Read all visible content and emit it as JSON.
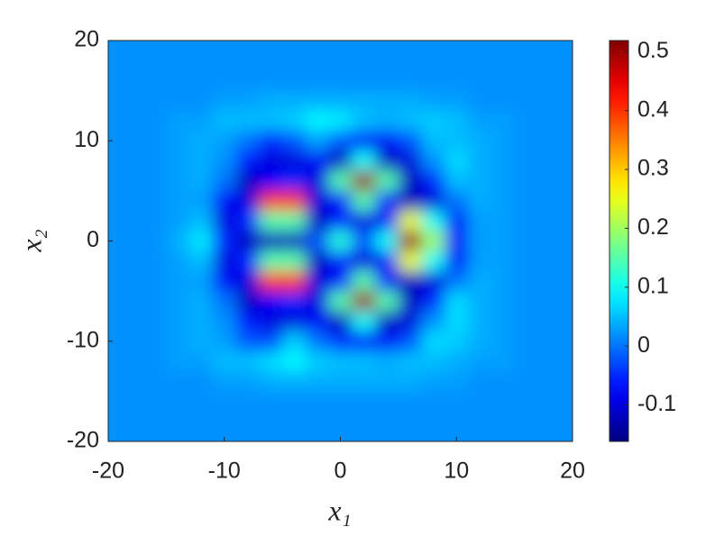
{
  "chart_data": {
    "type": "heatmap",
    "xlabel": "x₁",
    "ylabel": "x₂",
    "x": [
      -20,
      -18,
      -16,
      -14,
      -12,
      -10,
      -8,
      -6,
      -4,
      -2,
      0,
      2,
      4,
      6,
      8,
      10,
      12,
      14,
      16,
      18,
      20
    ],
    "y": [
      20,
      18,
      16,
      14,
      12,
      10,
      8,
      6,
      4,
      2,
      0,
      -2,
      -4,
      -6,
      -8,
      -10,
      -12,
      -14,
      -16,
      -18,
      -20
    ],
    "z": [
      [
        0.02,
        0.02,
        0.02,
        0.02,
        0.02,
        0.02,
        0.02,
        0.02,
        0.02,
        0.02,
        0.02,
        0.02,
        0.02,
        0.02,
        0.02,
        0.02,
        0.02,
        0.02,
        0.02,
        0.02,
        0.02
      ],
      [
        0.02,
        0.02,
        0.02,
        0.02,
        0.02,
        0.02,
        0.02,
        0.02,
        0.02,
        0.02,
        0.02,
        0.02,
        0.02,
        0.02,
        0.02,
        0.02,
        0.02,
        0.02,
        0.02,
        0.02,
        0.02
      ],
      [
        0.02,
        0.02,
        0.02,
        0.02,
        0.02,
        0.02,
        0.02,
        0.02,
        0.02,
        0.02,
        0.02,
        0.02,
        0.02,
        0.02,
        0.02,
        0.02,
        0.02,
        0.02,
        0.02,
        0.02,
        0.02
      ],
      [
        0.02,
        0.02,
        0.02,
        0.02,
        0.02,
        0.03,
        0.03,
        0.04,
        0.04,
        0.04,
        0.04,
        0.04,
        0.04,
        0.04,
        0.03,
        0.03,
        0.02,
        0.02,
        0.02,
        0.02,
        0.02
      ],
      [
        0.02,
        0.02,
        0.02,
        0.03,
        0.03,
        0.05,
        0.05,
        0.05,
        0.06,
        0.09,
        0.08,
        0.05,
        0.04,
        0.05,
        0.06,
        0.05,
        0.03,
        0.03,
        0.02,
        0.02,
        0.02
      ],
      [
        0.02,
        0.02,
        0.02,
        0.03,
        0.04,
        0.03,
        0,
        -0.05,
        -0.02,
        0.03,
        -0.02,
        -0.08,
        -0.08,
        -0.02,
        0.05,
        0.05,
        0.04,
        0.03,
        0.02,
        0.02,
        0.02
      ],
      [
        0.02,
        0.02,
        0.02,
        0.03,
        0.04,
        0.02,
        -0.06,
        -0.1,
        -0.1,
        -0.08,
        -0.12,
        0.1,
        -0.12,
        -0.1,
        0.02,
        0.07,
        0.04,
        0.03,
        0.02,
        0.02,
        0.02
      ],
      [
        0.02,
        0.02,
        0.02,
        0.03,
        0.04,
        0,
        -0.12,
        -0.08,
        -0.05,
        -0.1,
        0.15,
        0.5,
        0.15,
        -0.12,
        -0.05,
        0.05,
        0.04,
        0.03,
        0.02,
        0.02,
        0.02
      ],
      [
        0.02,
        0.02,
        0.02,
        0.03,
        0.03,
        -0.08,
        -0.1,
        0.4,
        0.4,
        -0.1,
        -0.08,
        0.15,
        -0.08,
        -0.12,
        -0.1,
        0,
        0.04,
        0.03,
        0.02,
        0.02,
        0.02
      ],
      [
        0.02,
        0.02,
        0.02,
        0.03,
        0.05,
        -0.1,
        -0.05,
        0.15,
        0.15,
        -0.12,
        -0.05,
        -0.1,
        -0.08,
        0.25,
        0.1,
        -0.08,
        0.03,
        0.03,
        0.02,
        0.02,
        0.02
      ],
      [
        0.02,
        0.02,
        0.02,
        0.04,
        0.08,
        -0.05,
        -0.12,
        -0.12,
        -0.12,
        -0.02,
        0.12,
        -0.02,
        0.1,
        0.5,
        0.2,
        -0.08,
        0.03,
        0.03,
        0.02,
        0.02,
        0.02
      ],
      [
        0.02,
        0.02,
        0.02,
        0.03,
        0.05,
        -0.1,
        -0.05,
        0.15,
        0.15,
        -0.12,
        -0.05,
        -0.1,
        -0.08,
        0.25,
        0.1,
        -0.08,
        0.03,
        0.03,
        0.02,
        0.02,
        0.02
      ],
      [
        0.02,
        0.02,
        0.02,
        0.03,
        0.03,
        -0.08,
        -0.1,
        0.4,
        0.4,
        -0.1,
        -0.08,
        0.15,
        -0.08,
        -0.12,
        -0.1,
        0,
        0.04,
        0.03,
        0.02,
        0.02,
        0.02
      ],
      [
        0.02,
        0.02,
        0.02,
        0.03,
        0.04,
        0,
        -0.12,
        -0.08,
        -0.05,
        -0.1,
        0.15,
        0.5,
        0.15,
        -0.12,
        -0.05,
        0.07,
        0.04,
        0.03,
        0.02,
        0.02,
        0.02
      ],
      [
        0.02,
        0.02,
        0.02,
        0.03,
        0.04,
        0.02,
        -0.06,
        -0.1,
        -0.1,
        -0.08,
        -0.12,
        0.1,
        -0.12,
        -0.1,
        0.02,
        0.07,
        0.04,
        0.03,
        0.02,
        0.02,
        0.02
      ],
      [
        0.02,
        0.02,
        0.02,
        0.03,
        0.04,
        0.03,
        -0.02,
        -0.03,
        0.06,
        0,
        -0.05,
        -0.08,
        -0.08,
        -0.02,
        0.07,
        0.06,
        0.04,
        0.03,
        0.02,
        0.02,
        0.02
      ],
      [
        0.02,
        0.02,
        0.02,
        0.03,
        0.03,
        0.05,
        0.05,
        0.07,
        0.09,
        0.06,
        0.05,
        0.05,
        0.04,
        0.05,
        0.05,
        0.04,
        0.03,
        0.03,
        0.02,
        0.02,
        0.02
      ],
      [
        0.02,
        0.02,
        0.02,
        0.02,
        0.02,
        0.03,
        0.03,
        0.04,
        0.04,
        0.04,
        0.04,
        0.04,
        0.04,
        0.04,
        0.03,
        0.03,
        0.02,
        0.02,
        0.02,
        0.02,
        0.02
      ],
      [
        0.02,
        0.02,
        0.02,
        0.02,
        0.02,
        0.02,
        0.02,
        0.02,
        0.02,
        0.02,
        0.02,
        0.02,
        0.02,
        0.02,
        0.02,
        0.02,
        0.02,
        0.02,
        0.02,
        0.02,
        0.02
      ],
      [
        0.02,
        0.02,
        0.02,
        0.02,
        0.02,
        0.02,
        0.02,
        0.02,
        0.02,
        0.02,
        0.02,
        0.02,
        0.02,
        0.02,
        0.02,
        0.02,
        0.02,
        0.02,
        0.02,
        0.02,
        0.02
      ],
      [
        0.02,
        0.02,
        0.02,
        0.02,
        0.02,
        0.02,
        0.02,
        0.02,
        0.02,
        0.02,
        0.02,
        0.02,
        0.02,
        0.02,
        0.02,
        0.02,
        0.02,
        0.02,
        0.02,
        0.02,
        0.02
      ]
    ],
    "xlim": [
      -20,
      20
    ],
    "ylim": [
      -20,
      20
    ],
    "xticks": [
      -20,
      -10,
      0,
      10,
      20
    ],
    "yticks": [
      -20,
      -10,
      0,
      10,
      20
    ],
    "colormap": "jet",
    "clim": [
      -0.162,
      0.519
    ],
    "cticks": [
      -0.1,
      0,
      0.1,
      0.2,
      0.3,
      0.4,
      0.5
    ]
  }
}
